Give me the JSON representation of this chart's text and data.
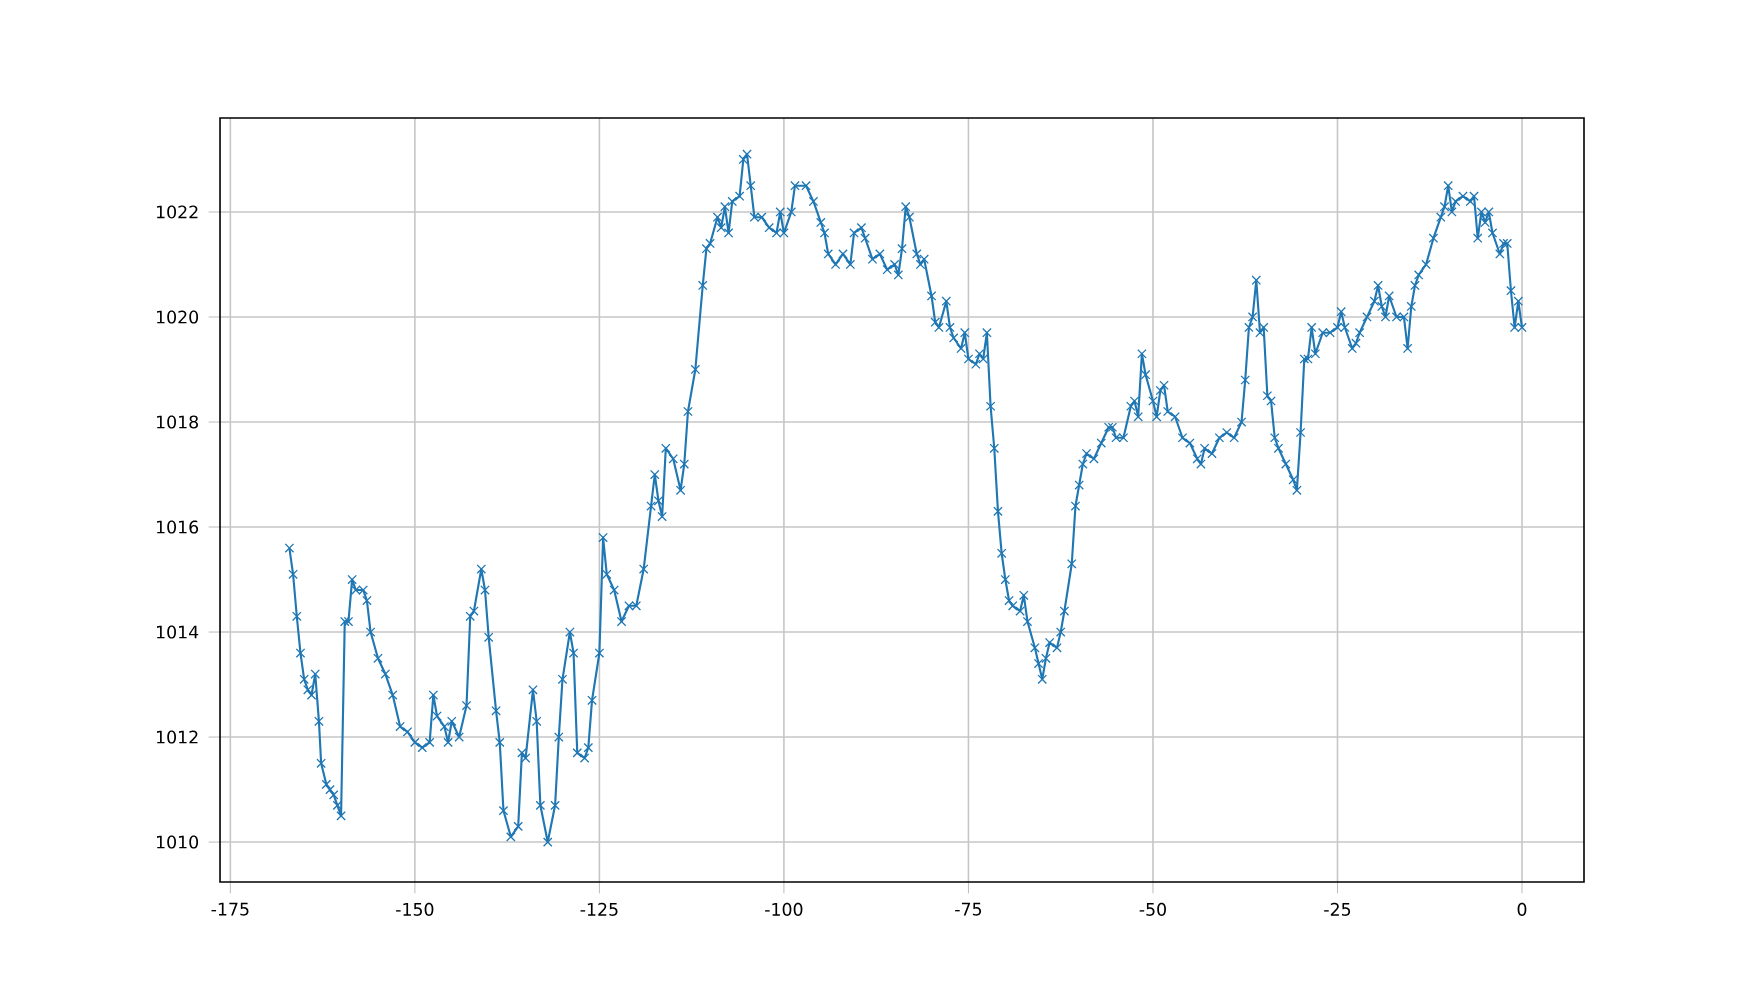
{
  "chart_data": {
    "type": "line",
    "color": "#1f77b4",
    "marker": "cross",
    "line_style": "solid",
    "grid": true,
    "xlim": [
      -176.4,
      8.4
    ],
    "ylim": [
      1009.24,
      1023.79
    ],
    "xticks": [
      -175,
      -150,
      -125,
      -100,
      -75,
      -50,
      -25,
      0
    ],
    "yticks": [
      1010,
      1012,
      1014,
      1016,
      1018,
      1020,
      1022
    ],
    "x": [
      -167,
      -166.5,
      -166,
      -165.5,
      -165,
      -164.5,
      -164,
      -163.5,
      -163,
      -162.7,
      -162,
      -161.5,
      -161,
      -160.5,
      -160,
      -159.5,
      -159,
      -158.5,
      -158,
      -157,
      -156.5,
      -156,
      -155,
      -154,
      -153,
      -152,
      -151,
      -150,
      -149,
      -148,
      -147.5,
      -147,
      -146,
      -145.5,
      -145,
      -144,
      -143,
      -142.5,
      -142,
      -141,
      -140.5,
      -140,
      -139,
      -138.5,
      -138,
      -137,
      -136,
      -135.5,
      -135,
      -134,
      -133.5,
      -133,
      -132,
      -131,
      -130.5,
      -130,
      -129,
      -128.5,
      -128,
      -127,
      -126.5,
      -126,
      -125,
      -124.5,
      -124,
      -123,
      -122,
      -121,
      -120,
      -119,
      -118,
      -117.5,
      -117,
      -116.5,
      -116,
      -115,
      -114,
      -113.5,
      -113,
      -112,
      -111,
      -110.5,
      -110,
      -109,
      -108.5,
      -108,
      -107.5,
      -107,
      -106,
      -105.5,
      -105,
      -104.5,
      -104,
      -103,
      -102,
      -101,
      -100.5,
      -100,
      -99,
      -98.5,
      -97,
      -96,
      -95,
      -94.5,
      -94,
      -93,
      -92,
      -91,
      -90.5,
      -89.5,
      -89,
      -88,
      -87,
      -86,
      -85,
      -84.5,
      -84,
      -83.5,
      -83,
      -82,
      -81.5,
      -81,
      -80,
      -79.5,
      -79,
      -78,
      -77.5,
      -77,
      -76,
      -75.5,
      -75,
      -74,
      -73.5,
      -73,
      -72.5,
      -72,
      -71.5,
      -71,
      -70.5,
      -70,
      -69.5,
      -69,
      -68,
      -67.5,
      -67,
      -66,
      -65.5,
      -65,
      -64.5,
      -64,
      -63,
      -62.5,
      -62,
      -61,
      -60.5,
      -60,
      -59.5,
      -59,
      -58,
      -57,
      -56,
      -55.5,
      -55,
      -54,
      -53,
      -52.5,
      -52,
      -51.5,
      -51,
      -50,
      -49.5,
      -49,
      -48.5,
      -48,
      -47,
      -46,
      -45,
      -44,
      -43.5,
      -43,
      -42,
      -41,
      -40,
      -39,
      -38,
      -37.5,
      -37,
      -36.5,
      -36,
      -35.5,
      -35,
      -34.5,
      -34,
      -33.5,
      -33,
      -32,
      -31,
      -30.5,
      -30,
      -29.5,
      -29,
      -28.5,
      -28,
      -27,
      -26,
      -25,
      -24.5,
      -24,
      -23,
      -22.5,
      -22,
      -21,
      -20,
      -19.5,
      -19,
      -18.5,
      -18,
      -17,
      -16,
      -15.5,
      -15,
      -14.5,
      -14,
      -13,
      -12,
      -11,
      -10.5,
      -10,
      -9.5,
      -9,
      -8,
      -7,
      -6.5,
      -6,
      -5.5,
      -5,
      -4.5,
      -4,
      -3,
      -2.5,
      -2,
      -1.5,
      -1,
      -0.5,
      0
    ],
    "values": [
      1015.6,
      1015.1,
      1014.3,
      1013.6,
      1013.1,
      1012.9,
      1012.8,
      1013.2,
      1012.3,
      1011.5,
      1011.1,
      1011.0,
      1010.9,
      1010.7,
      1010.5,
      1014.2,
      1014.2,
      1015.0,
      1014.8,
      1014.8,
      1014.6,
      1014.0,
      1013.5,
      1013.2,
      1012.8,
      1012.2,
      1012.1,
      1011.9,
      1011.8,
      1011.9,
      1012.8,
      1012.4,
      1012.2,
      1011.9,
      1012.3,
      1012.0,
      1012.6,
      1014.3,
      1014.4,
      1015.2,
      1014.8,
      1013.9,
      1012.5,
      1011.9,
      1010.6,
      1010.1,
      1010.3,
      1011.7,
      1011.6,
      1012.9,
      1012.3,
      1010.7,
      1010.0,
      1010.7,
      1012.0,
      1013.1,
      1014.0,
      1013.6,
      1011.7,
      1011.6,
      1011.8,
      1012.7,
      1013.6,
      1015.8,
      1015.1,
      1014.8,
      1014.2,
      1014.5,
      1014.5,
      1015.2,
      1016.4,
      1017.0,
      1016.5,
      1016.2,
      1017.5,
      1017.3,
      1016.7,
      1017.2,
      1018.2,
      1019.0,
      1020.6,
      1021.3,
      1021.4,
      1021.9,
      1021.7,
      1022.1,
      1021.6,
      1022.2,
      1022.3,
      1023.0,
      1023.1,
      1022.5,
      1021.9,
      1021.9,
      1021.7,
      1021.6,
      1022.0,
      1021.6,
      1022.0,
      1022.5,
      1022.5,
      1022.2,
      1021.8,
      1021.6,
      1021.2,
      1021.0,
      1021.2,
      1021.0,
      1021.6,
      1021.7,
      1021.5,
      1021.1,
      1021.2,
      1020.9,
      1021.0,
      1020.8,
      1021.3,
      1022.1,
      1021.9,
      1021.2,
      1021.0,
      1021.1,
      1020.4,
      1019.9,
      1019.8,
      1020.3,
      1019.8,
      1019.6,
      1019.4,
      1019.7,
      1019.2,
      1019.1,
      1019.3,
      1019.2,
      1019.7,
      1018.3,
      1017.5,
      1016.3,
      1015.5,
      1015.0,
      1014.6,
      1014.5,
      1014.4,
      1014.7,
      1014.2,
      1013.7,
      1013.4,
      1013.1,
      1013.5,
      1013.8,
      1013.7,
      1014.0,
      1014.4,
      1015.3,
      1016.4,
      1016.8,
      1017.2,
      1017.4,
      1017.3,
      1017.6,
      1017.9,
      1017.9,
      1017.7,
      1017.7,
      1018.3,
      1018.4,
      1018.1,
      1019.3,
      1018.9,
      1018.4,
      1018.1,
      1018.6,
      1018.7,
      1018.2,
      1018.1,
      1017.7,
      1017.6,
      1017.3,
      1017.2,
      1017.5,
      1017.4,
      1017.7,
      1017.8,
      1017.7,
      1018.0,
      1018.8,
      1019.8,
      1020.0,
      1020.7,
      1019.7,
      1019.8,
      1018.5,
      1018.4,
      1017.7,
      1017.5,
      1017.2,
      1016.9,
      1016.7,
      1017.8,
      1019.2,
      1019.2,
      1019.8,
      1019.3,
      1019.7,
      1019.7,
      1019.8,
      1020.1,
      1019.8,
      1019.4,
      1019.5,
      1019.7,
      1020.0,
      1020.3,
      1020.6,
      1020.2,
      1020.0,
      1020.4,
      1020.0,
      1020.0,
      1019.4,
      1020.2,
      1020.6,
      1020.8,
      1021.0,
      1021.5,
      1021.9,
      1022.1,
      1022.5,
      1022.0,
      1022.2,
      1022.3,
      1022.2,
      1022.3,
      1021.5,
      1022.0,
      1021.8,
      1022.0,
      1021.6,
      1021.2,
      1021.4,
      1021.4,
      1020.5,
      1019.8,
      1020.3,
      1019.8
    ]
  }
}
